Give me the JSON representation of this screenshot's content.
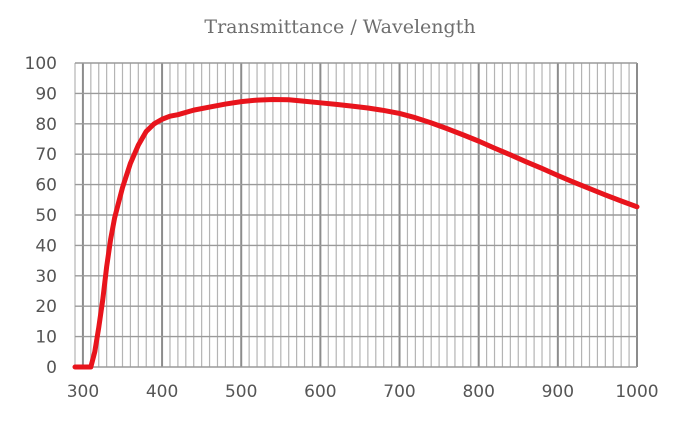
{
  "chart_data": {
    "type": "line",
    "title": "Transmittance / Wavelength",
    "xlabel": "",
    "ylabel": "",
    "xlim": [
      290,
      1000
    ],
    "ylim": [
      0,
      100
    ],
    "x_ticks": [
      300,
      400,
      500,
      600,
      700,
      800,
      900,
      1000
    ],
    "y_ticks": [
      0,
      10,
      20,
      30,
      40,
      50,
      60,
      70,
      80,
      90,
      100
    ],
    "grid": true,
    "line_color": "#e8141c",
    "x_minor_step": 10,
    "series": [
      {
        "x": [
          290,
          310,
          315,
          320,
          325,
          330,
          335,
          340,
          350,
          360,
          370,
          380,
          390,
          400,
          410,
          420,
          440,
          460,
          480,
          500,
          520,
          540,
          560,
          580,
          600,
          620,
          640,
          660,
          680,
          700,
          720,
          740,
          760,
          780,
          800,
          820,
          840,
          860,
          880,
          900,
          920,
          940,
          960,
          980,
          1000
        ],
        "y": [
          0,
          0,
          5,
          13,
          22,
          33,
          42,
          49,
          59,
          67,
          73,
          77.5,
          80,
          81.5,
          82.5,
          83,
          84.5,
          85.5,
          86.5,
          87.3,
          87.8,
          88,
          87.9,
          87.4,
          86.9,
          86.4,
          85.8,
          85.2,
          84.4,
          83.4,
          82,
          80.3,
          78.4,
          76.4,
          74.3,
          72,
          69.8,
          67.5,
          65.3,
          63,
          60.8,
          58.7,
          56.6,
          54.6,
          52.7
        ]
      }
    ]
  }
}
